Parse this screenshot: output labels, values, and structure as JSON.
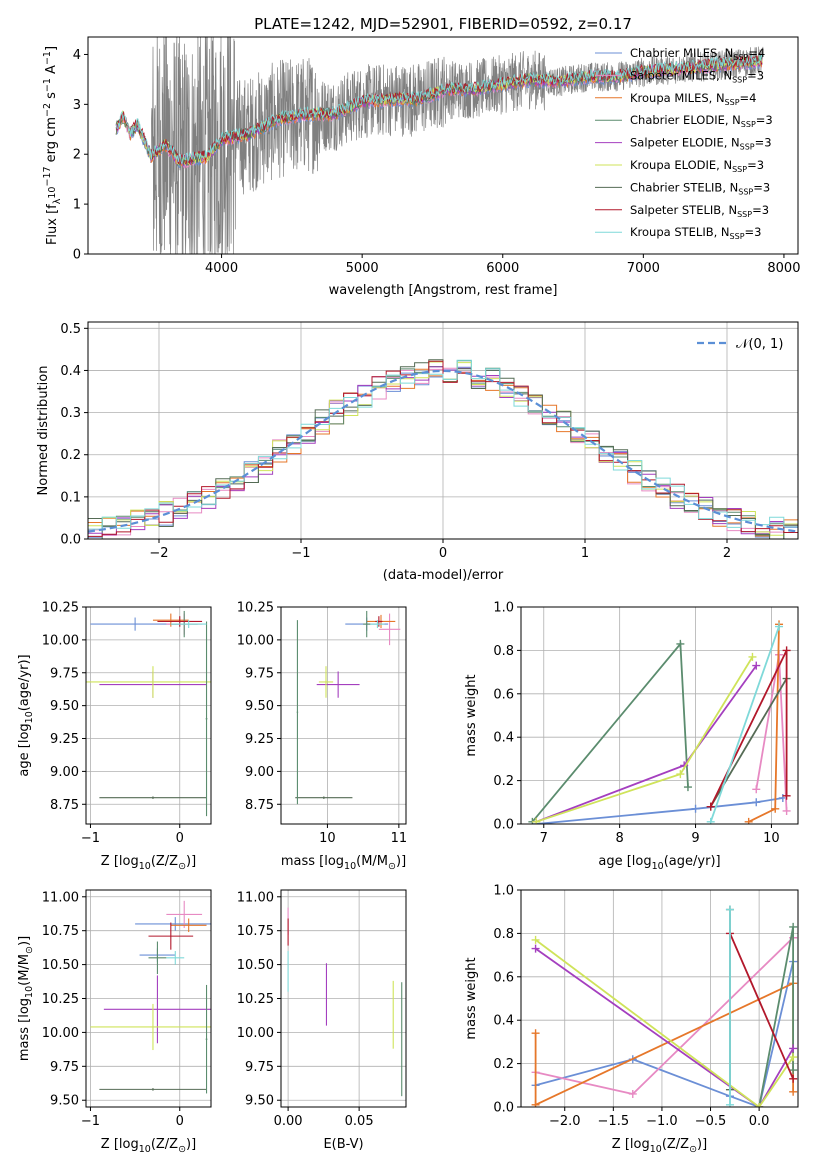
{
  "figure": {
    "title": "PLATE=1242, MJD=52901, FIBERID=0592, z=0.17"
  },
  "colors": {
    "Chabrier MILES": "#6b8fd6",
    "Salpeter MILES": "#e78ac3",
    "Kroupa MILES": "#e6772a",
    "Chabrier ELODIE": "#5b8c6e",
    "Salpeter ELODIE": "#a43fbf",
    "Kroupa ELODIE": "#cfe35a",
    "Chabrier STELIB": "#556b55",
    "Salpeter STELIB": "#b2182b",
    "Kroupa STELIB": "#7fd9d9",
    "data": "#808080",
    "normal": "#5b8fd6"
  },
  "chart_data": [
    {
      "id": "spectrum",
      "type": "line",
      "title": "PLATE=1242, MJD=52901, FIBERID=0592, z=0.17",
      "xlabel": "wavelength [Angstrom, rest frame]",
      "ylabel_parts": [
        "Flux [f",
        "λ",
        "10",
        "−17",
        " erg cm",
        "−2",
        " s",
        "−1",
        " A",
        "−1",
        "]"
      ],
      "xlim": [
        3050,
        8100
      ],
      "ylim": [
        0,
        4.35
      ],
      "xticks": [
        4000,
        5000,
        6000,
        7000,
        8000
      ],
      "yticks": [
        0,
        1,
        2,
        3,
        4
      ],
      "x_range_data": [
        3250,
        7850
      ],
      "model_anchor_x": [
        3250,
        3300,
        3350,
        3400,
        3500,
        3600,
        3700,
        3800,
        3900,
        4000,
        4200,
        4400,
        4600,
        4800,
        5000,
        5200,
        5400,
        5600,
        5800,
        6000,
        6200,
        6400,
        6600,
        6800,
        7000,
        7200,
        7400,
        7600,
        7850
      ],
      "model_anchor_y": [
        2.5,
        2.75,
        2.4,
        2.6,
        1.95,
        2.2,
        1.85,
        1.9,
        1.95,
        2.3,
        2.4,
        2.7,
        2.8,
        2.8,
        3.05,
        3.1,
        3.1,
        3.3,
        3.3,
        3.4,
        3.5,
        3.45,
        3.55,
        3.55,
        3.65,
        3.7,
        3.75,
        3.8,
        3.88
      ],
      "legend": [
        "Chabrier MILES",
        "Salpeter MILES",
        "Kroupa MILES",
        "Chabrier ELODIE",
        "Salpeter ELODIE",
        "Kroupa ELODIE",
        "Chabrier STELIB",
        "Salpeter STELIB",
        "Kroupa STELIB"
      ],
      "legend_nssp": [
        "4",
        "3",
        "4",
        "3",
        "3",
        "3",
        "3",
        "3",
        "3"
      ],
      "legend_nssp_label": "N",
      "legend_nssp_sub": "SSP",
      "legend_position": "upper-right"
    },
    {
      "id": "residual-hist",
      "type": "histogram",
      "xlabel": "(data-model)/error",
      "ylabel": "Normed distribution",
      "xlim": [
        -2.5,
        2.5
      ],
      "ylim": [
        0,
        0.515
      ],
      "xticks": [
        -2,
        -1,
        0,
        1,
        2
      ],
      "yticks": [
        0.0,
        0.1,
        0.2,
        0.3,
        0.4,
        0.5
      ],
      "bin_width": 0.1,
      "legend": "𝒩(0, 1)",
      "legend_position": "upper-right",
      "grid": true
    },
    {
      "id": "age-vs-Z",
      "type": "errorbar",
      "xlabel_parts": [
        "Z [log",
        "10",
        "(Z/Z",
        "⊙",
        ")]"
      ],
      "ylabel_parts": [
        "age  [log",
        "10",
        "(age/yr)]"
      ],
      "xlim": [
        -1.05,
        0.35
      ],
      "ylim": [
        8.6,
        10.25
      ],
      "xticks": [
        -1,
        0
      ],
      "yticks": [
        8.75,
        9.0,
        9.25,
        9.5,
        9.75,
        10.0,
        10.25
      ],
      "grid": true,
      "points": [
        {
          "series": "Chabrier MILES",
          "x": -0.5,
          "xerr": 0.5,
          "y": 10.12,
          "yerr": 0.05
        },
        {
          "series": "Salpeter MILES",
          "x": 0.05,
          "xerr": 0.2,
          "y": 10.12,
          "yerr": 0.08
        },
        {
          "series": "Kroupa MILES",
          "x": -0.1,
          "xerr": 0.2,
          "y": 10.15,
          "yerr": 0.05
        },
        {
          "series": "Chabrier ELODIE",
          "x": 0.05,
          "xerr": 0.15,
          "y": 10.12,
          "yerr": 0.1
        },
        {
          "series": "Salpeter ELODIE",
          "x": -0.3,
          "xerr": 0.6,
          "y": 9.66,
          "yerr": 0.1
        },
        {
          "series": "Kroupa ELODIE",
          "x": -0.3,
          "xerr": 0.75,
          "y": 9.68,
          "yerr": 0.12
        },
        {
          "series": "Chabrier STELIB",
          "x": -0.3,
          "xerr": 0.6,
          "y": 8.8,
          "yerr": 0.01
        },
        {
          "series": "Chabrier ELODIE",
          "x": 0.3,
          "xerr": 0.01,
          "y": 9.4,
          "yerr": 0.74
        },
        {
          "series": "Salpeter STELIB",
          "x": 0.0,
          "xerr": 0.25,
          "y": 10.14,
          "yerr": 0.04
        },
        {
          "series": "Kroupa STELIB",
          "x": 0.1,
          "xerr": 0.2,
          "y": 10.12,
          "yerr": 0.03
        }
      ]
    },
    {
      "id": "age-vs-mass",
      "type": "errorbar",
      "xlabel_parts": [
        "mass [log",
        "10",
        "(M/M",
        "⊙",
        ")]"
      ],
      "xlim": [
        9.35,
        11.1
      ],
      "ylim": [
        8.6,
        10.25
      ],
      "xticks": [
        10,
        11
      ],
      "yticks": [
        8.75,
        9.0,
        9.25,
        9.5,
        9.75,
        10.0,
        10.25
      ],
      "grid": true,
      "points": [
        {
          "series": "Chabrier MILES",
          "x": 10.55,
          "xerr": 0.3,
          "y": 10.12,
          "yerr": 0.05
        },
        {
          "series": "Salpeter MILES",
          "x": 10.87,
          "xerr": 0.15,
          "y": 10.08,
          "yerr": 0.12
        },
        {
          "series": "Kroupa MILES",
          "x": 10.75,
          "xerr": 0.2,
          "y": 10.14,
          "yerr": 0.05
        },
        {
          "series": "Chabrier ELODIE",
          "x": 10.55,
          "xerr": 0.05,
          "y": 10.12,
          "yerr": 0.1
        },
        {
          "series": "Salpeter ELODIE",
          "x": 10.15,
          "xerr": 0.3,
          "y": 9.66,
          "yerr": 0.1
        },
        {
          "series": "Kroupa ELODIE",
          "x": 9.98,
          "xerr": 0.1,
          "y": 9.68,
          "yerr": 0.12
        },
        {
          "series": "Chabrier STELIB",
          "x": 9.95,
          "xerr": 0.4,
          "y": 8.8,
          "yerr": 0.01
        },
        {
          "series": "Chabrier ELODIE",
          "x": 9.58,
          "xerr": 0.01,
          "y": 9.45,
          "yerr": 0.7
        },
        {
          "series": "Salpeter STELIB",
          "x": 10.72,
          "xerr": 0.05,
          "y": 10.14,
          "yerr": 0.04
        },
        {
          "series": "Kroupa STELIB",
          "x": 10.7,
          "xerr": 0.1,
          "y": 10.12,
          "yerr": 0.03
        }
      ]
    },
    {
      "id": "weight-vs-age",
      "type": "line",
      "xlabel_parts": [
        "age  [log",
        "10",
        "(age/yr)]"
      ],
      "ylabel": "mass weight",
      "xlim": [
        6.7,
        10.35
      ],
      "ylim": [
        0,
        1.0
      ],
      "xticks": [
        7,
        8,
        9,
        10
      ],
      "yticks": [
        0.0,
        0.2,
        0.4,
        0.6,
        0.8,
        1.0
      ],
      "grid": true,
      "series": [
        {
          "name": "Chabrier MILES",
          "x": [
            6.9,
            9.0,
            9.8,
            10.15
          ],
          "y": [
            0.0,
            0.07,
            0.1,
            0.12
          ]
        },
        {
          "name": "Salpeter MILES",
          "x": [
            9.8,
            10.1,
            10.2
          ],
          "y": [
            0.16,
            0.78,
            0.06
          ]
        },
        {
          "name": "Kroupa MILES",
          "x": [
            9.7,
            10.05,
            10.1
          ],
          "y": [
            0.01,
            0.07,
            0.92
          ]
        },
        {
          "name": "Chabrier ELODIE",
          "x": [
            6.85,
            8.8,
            8.9
          ],
          "y": [
            0.01,
            0.83,
            0.17
          ]
        },
        {
          "name": "Salpeter ELODIE",
          "x": [
            6.9,
            8.85,
            9.8
          ],
          "y": [
            0.01,
            0.27,
            0.73
          ]
        },
        {
          "name": "Kroupa ELODIE",
          "x": [
            6.9,
            8.8,
            9.75
          ],
          "y": [
            0.01,
            0.23,
            0.77
          ]
        },
        {
          "name": "Chabrier STELIB",
          "x": [
            9.2,
            10.2
          ],
          "y": [
            0.08,
            0.67
          ]
        },
        {
          "name": "Salpeter STELIB",
          "x": [
            9.2,
            10.2,
            10.2
          ],
          "y": [
            0.08,
            0.8,
            0.13
          ]
        },
        {
          "name": "Kroupa STELIB",
          "x": [
            9.2,
            10.1
          ],
          "y": [
            0.01,
            0.91
          ]
        }
      ]
    },
    {
      "id": "mass-vs-Z",
      "type": "errorbar",
      "xlabel_parts": [
        "Z [log",
        "10",
        "(Z/Z",
        "⊙",
        ")]"
      ],
      "ylabel_parts": [
        "mass [log",
        "10",
        "(M/M",
        "⊙",
        ")]"
      ],
      "xlim": [
        -1.05,
        0.35
      ],
      "ylim": [
        9.45,
        11.05
      ],
      "xticks": [
        -1,
        0
      ],
      "yticks": [
        9.5,
        9.75,
        10.0,
        10.25,
        10.5,
        10.75,
        11.0
      ],
      "grid": true,
      "points": [
        {
          "series": "Chabrier MILES",
          "x": -0.25,
          "xerr": 0.2,
          "y": 10.57,
          "yerr": 0.05
        },
        {
          "series": "Chabrier MILES",
          "x": -0.05,
          "xerr": 0.45,
          "y": 10.8,
          "yerr": 0.05
        },
        {
          "series": "Salpeter MILES",
          "x": 0.05,
          "xerr": 0.2,
          "y": 10.87,
          "yerr": 0.1
        },
        {
          "series": "Kroupa MILES",
          "x": 0.1,
          "xerr": 0.2,
          "y": 10.79,
          "yerr": 0.05
        },
        {
          "series": "Chabrier ELODIE",
          "x": -0.25,
          "xerr": 0.1,
          "y": 10.55,
          "yerr": 0.12
        },
        {
          "series": "Salpeter ELODIE",
          "x": -0.25,
          "xerr": 0.6,
          "y": 10.17,
          "yerr": 0.25
        },
        {
          "series": "Kroupa ELODIE",
          "x": -0.3,
          "xerr": 0.7,
          "y": 10.04,
          "yerr": 0.17
        },
        {
          "series": "Chabrier STELIB",
          "x": -0.3,
          "xerr": 0.6,
          "y": 9.58,
          "yerr": 0.01
        },
        {
          "series": "Chabrier ELODIE",
          "x": 0.3,
          "xerr": 0.01,
          "y": 9.95,
          "yerr": 0.4
        },
        {
          "series": "Salpeter STELIB",
          "x": -0.1,
          "xerr": 0.25,
          "y": 10.71,
          "yerr": 0.1
        },
        {
          "series": "Kroupa STELIB",
          "x": -0.05,
          "xerr": 0.1,
          "y": 10.55,
          "yerr": 0.05
        }
      ]
    },
    {
      "id": "mass-vs-EBV",
      "type": "errorbar",
      "xlabel": "E(B-V)",
      "xlim": [
        -0.005,
        0.083
      ],
      "ylim": [
        9.45,
        11.05
      ],
      "xticks": [
        0.0,
        0.05
      ],
      "yticks": [
        9.5,
        9.75,
        10.0,
        10.25,
        10.5,
        10.75,
        11.0
      ],
      "grid": true,
      "points": [
        {
          "series": "Salpeter MILES",
          "x": 0.0,
          "xerr": 0.0,
          "y": 10.82,
          "yerr": 0.1
        },
        {
          "series": "Salpeter STELIB",
          "x": 0.0,
          "xerr": 0.0,
          "y": 10.74,
          "yerr": 0.1
        },
        {
          "series": "Kroupa STELIB",
          "x": 0.0,
          "xerr": 0.0,
          "y": 10.45,
          "yerr": 0.15
        },
        {
          "series": "Salpeter ELODIE",
          "x": 0.027,
          "xerr": 0.0,
          "y": 10.28,
          "yerr": 0.23
        },
        {
          "series": "Kroupa ELODIE",
          "x": 0.074,
          "xerr": 0.0,
          "y": 10.13,
          "yerr": 0.25
        },
        {
          "series": "Chabrier ELODIE",
          "x": 0.08,
          "xerr": 0.0,
          "y": 9.95,
          "yerr": 0.42
        }
      ]
    },
    {
      "id": "weight-vs-Z",
      "type": "line",
      "xlabel_parts": [
        "Z [log",
        "10",
        "(Z/Z",
        "⊙",
        ")]"
      ],
      "ylabel": "mass weight",
      "xlim": [
        -2.45,
        0.4
      ],
      "ylim": [
        0,
        1.0
      ],
      "xticks": [
        -2.0,
        -1.5,
        -1.0,
        -0.5,
        0.0
      ],
      "yticks": [
        0.0,
        0.2,
        0.4,
        0.6,
        0.8,
        1.0
      ],
      "grid": true,
      "series": [
        {
          "name": "Chabrier MILES",
          "x": [
            -2.3,
            -1.3,
            -0.3,
            0.0,
            0.35
          ],
          "y": [
            0.1,
            0.22,
            0.05,
            0.0,
            0.67
          ]
        },
        {
          "name": "Salpeter MILES",
          "x": [
            -2.3,
            -1.3,
            0.35
          ],
          "y": [
            0.16,
            0.06,
            0.78
          ]
        },
        {
          "name": "Kroupa MILES",
          "x": [
            -2.3,
            -2.3,
            0.35,
            0.35
          ],
          "y": [
            0.34,
            0.01,
            0.57,
            0.07
          ]
        },
        {
          "name": "Chabrier ELODIE",
          "x": [
            0.0,
            0.35,
            0.35
          ],
          "y": [
            0.0,
            0.83,
            0.17
          ]
        },
        {
          "name": "Salpeter ELODIE",
          "x": [
            -2.3,
            0.0,
            0.35
          ],
          "y": [
            0.73,
            0.0,
            0.27
          ]
        },
        {
          "name": "Kroupa ELODIE",
          "x": [
            -2.3,
            0.0,
            0.35
          ],
          "y": [
            0.77,
            0.0,
            0.23
          ]
        },
        {
          "name": "Chabrier STELIB",
          "x": [
            -0.3,
            -0.3
          ],
          "y": [
            0.08,
            0.91
          ]
        },
        {
          "name": "Salpeter STELIB",
          "x": [
            -0.3,
            0.35
          ],
          "y": [
            0.8,
            0.13
          ]
        },
        {
          "name": "Kroupa STELIB",
          "x": [
            -0.3,
            -0.3
          ],
          "y": [
            0.01,
            0.91
          ]
        }
      ]
    }
  ]
}
